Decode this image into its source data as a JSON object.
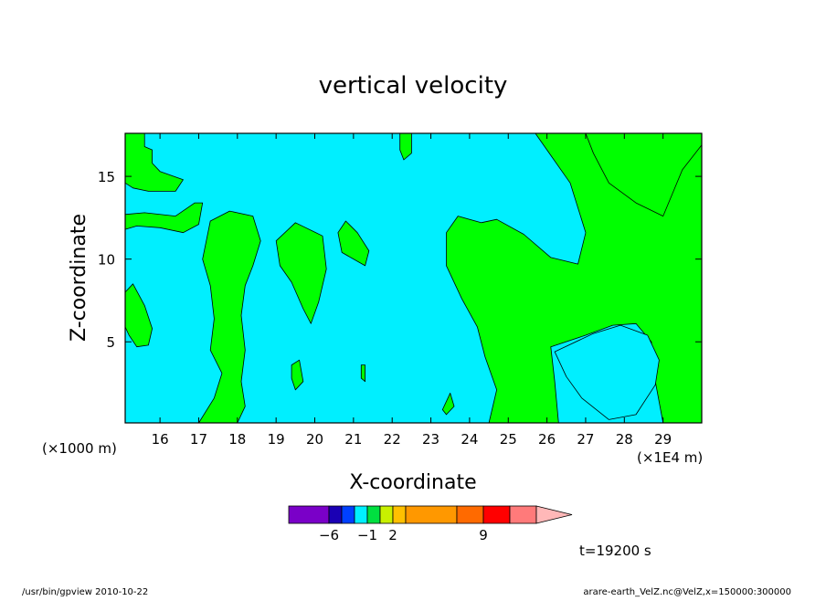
{
  "chart_data": {
    "type": "heatmap",
    "title": "vertical velocity",
    "xlabel": "X-coordinate",
    "ylabel": "Z-coordinate",
    "x_scale_note_left": "(×1000 m)",
    "x_scale_note_right": "(×1E4 m)",
    "xlim": [
      15.1,
      30.0
    ],
    "ylim": [
      0.1,
      17.6
    ],
    "x_ticks": [
      16,
      17,
      18,
      19,
      20,
      21,
      22,
      23,
      24,
      25,
      26,
      27,
      28,
      29
    ],
    "y_ticks": [
      5,
      10,
      15
    ],
    "regions": [
      {
        "name": "green-left-upper",
        "level": "0 to 2",
        "points": [
          [
            15.1,
            17.6
          ],
          [
            15.6,
            17.6
          ],
          [
            15.6,
            16.8
          ],
          [
            15.8,
            16.6
          ],
          [
            15.8,
            15.8
          ],
          [
            16.0,
            15.3
          ],
          [
            16.6,
            14.8
          ],
          [
            16.4,
            14.1
          ],
          [
            15.7,
            14.1
          ],
          [
            15.3,
            14.3
          ],
          [
            15.1,
            14.6
          ]
        ]
      },
      {
        "name": "green-left-band",
        "level": "0 to 2",
        "points": [
          [
            15.1,
            12.7
          ],
          [
            15.6,
            12.8
          ],
          [
            16.4,
            12.6
          ],
          [
            16.9,
            13.4
          ],
          [
            17.1,
            13.4
          ],
          [
            17.0,
            12.1
          ],
          [
            16.6,
            11.6
          ],
          [
            16.0,
            11.9
          ],
          [
            15.4,
            12.0
          ],
          [
            15.1,
            11.8
          ]
        ]
      },
      {
        "name": "green-left-lower",
        "level": "0 to 2",
        "points": [
          [
            15.1,
            8.0
          ],
          [
            15.3,
            8.5
          ],
          [
            15.6,
            7.2
          ],
          [
            15.8,
            5.8
          ],
          [
            15.7,
            4.8
          ],
          [
            15.4,
            4.7
          ],
          [
            15.2,
            5.4
          ],
          [
            15.1,
            5.9
          ]
        ]
      },
      {
        "name": "green-17-19",
        "level": "0 to 2",
        "points": [
          [
            17.3,
            12.3
          ],
          [
            17.8,
            12.9
          ],
          [
            18.4,
            12.6
          ],
          [
            18.6,
            11.1
          ],
          [
            18.4,
            9.6
          ],
          [
            18.2,
            8.4
          ],
          [
            18.1,
            6.6
          ],
          [
            18.2,
            4.5
          ],
          [
            18.1,
            2.6
          ],
          [
            18.2,
            1.1
          ],
          [
            18.0,
            0.1
          ],
          [
            17.0,
            0.1
          ],
          [
            17.4,
            1.6
          ],
          [
            17.6,
            3.1
          ],
          [
            17.3,
            4.5
          ],
          [
            17.4,
            6.4
          ],
          [
            17.3,
            8.4
          ],
          [
            17.1,
            10.0
          ]
        ]
      },
      {
        "name": "green-19-20",
        "level": "0 to 2",
        "points": [
          [
            19.0,
            11.1
          ],
          [
            19.5,
            12.2
          ],
          [
            20.2,
            11.4
          ],
          [
            20.3,
            9.4
          ],
          [
            20.1,
            7.4
          ],
          [
            19.9,
            6.1
          ],
          [
            19.7,
            7.0
          ],
          [
            19.4,
            8.6
          ],
          [
            19.1,
            9.6
          ]
        ]
      },
      {
        "name": "green-20-21",
        "level": "0 to 2",
        "points": [
          [
            20.8,
            12.3
          ],
          [
            21.1,
            11.6
          ],
          [
            21.4,
            10.5
          ],
          [
            21.3,
            9.6
          ],
          [
            20.7,
            10.4
          ],
          [
            20.6,
            11.6
          ]
        ]
      },
      {
        "name": "green-top-22",
        "level": "0 to 2",
        "points": [
          [
            22.2,
            17.6
          ],
          [
            22.5,
            17.6
          ],
          [
            22.5,
            16.4
          ],
          [
            22.3,
            16.0
          ],
          [
            22.2,
            16.6
          ]
        ]
      },
      {
        "name": "green-main-east",
        "level": "0 to 2",
        "points": [
          [
            23.7,
            12.6
          ],
          [
            24.3,
            12.2
          ],
          [
            24.7,
            12.4
          ],
          [
            25.4,
            11.5
          ],
          [
            26.1,
            10.1
          ],
          [
            26.8,
            9.7
          ],
          [
            27.0,
            11.6
          ],
          [
            26.6,
            14.6
          ],
          [
            26.0,
            16.6
          ],
          [
            25.7,
            17.6
          ],
          [
            30.0,
            17.6
          ],
          [
            30.0,
            16.9
          ],
          [
            29.5,
            15.4
          ],
          [
            29.0,
            12.6
          ],
          [
            28.3,
            13.4
          ],
          [
            27.6,
            14.6
          ],
          [
            27.2,
            16.4
          ],
          [
            27.0,
            17.6
          ],
          [
            30.0,
            17.6
          ],
          [
            30.0,
            0.1
          ],
          [
            29.0,
            0.1
          ],
          [
            28.8,
            2.6
          ],
          [
            28.7,
            5.0
          ],
          [
            28.3,
            6.1
          ],
          [
            27.7,
            6.0
          ],
          [
            27.0,
            5.4
          ],
          [
            26.1,
            4.7
          ],
          [
            26.2,
            2.6
          ],
          [
            26.3,
            0.1
          ],
          [
            24.5,
            0.1
          ],
          [
            24.7,
            2.1
          ],
          [
            24.4,
            4.1
          ],
          [
            24.2,
            5.9
          ],
          [
            23.8,
            7.6
          ],
          [
            23.4,
            9.6
          ],
          [
            23.4,
            11.6
          ]
        ]
      },
      {
        "name": "green-cyan-hole",
        "level": "-1 to 0",
        "points": [
          [
            26.2,
            4.4
          ],
          [
            27.2,
            5.5
          ],
          [
            27.9,
            6.0
          ],
          [
            28.6,
            5.4
          ],
          [
            28.9,
            3.9
          ],
          [
            28.8,
            2.4
          ],
          [
            28.3,
            0.6
          ],
          [
            27.6,
            0.3
          ],
          [
            26.9,
            1.6
          ],
          [
            26.5,
            2.9
          ]
        ]
      },
      {
        "name": "green-spot-a",
        "level": "0 to 2",
        "points": [
          [
            19.4,
            3.6
          ],
          [
            19.6,
            3.9
          ],
          [
            19.7,
            2.6
          ],
          [
            19.5,
            2.1
          ],
          [
            19.4,
            2.8
          ]
        ]
      },
      {
        "name": "green-spot-b",
        "level": "0 to 2",
        "points": [
          [
            21.2,
            3.6
          ],
          [
            21.3,
            3.6
          ],
          [
            21.3,
            2.6
          ],
          [
            21.2,
            2.8
          ]
        ]
      },
      {
        "name": "green-spot-c",
        "level": "0 to 2",
        "points": [
          [
            23.3,
            0.9
          ],
          [
            23.5,
            1.9
          ],
          [
            23.6,
            1.1
          ],
          [
            23.4,
            0.6
          ]
        ]
      }
    ],
    "colorbar": {
      "colors": [
        "#7a00c8",
        "#1a00b4",
        "#0040ff",
        "#00f0ff",
        "#00e040",
        "#c8f000",
        "#ffc000",
        "#ff9800",
        "#ff6a00",
        "#ff0000",
        "#ff7a7a",
        "#ffb8b8"
      ],
      "labels": [
        "−6",
        "−1",
        "2",
        "9"
      ],
      "label_after_index": [
        0,
        3,
        5,
        8
      ]
    },
    "colors": {
      "negative_weak": "#00efff",
      "positive_weak": "#00ff00"
    },
    "time_label": "t=19200 s"
  },
  "footer": {
    "left": "/usr/bin/gpview   2010-10-22",
    "right": "arare-earth_VelZ.nc@VelZ,x=150000:300000"
  }
}
